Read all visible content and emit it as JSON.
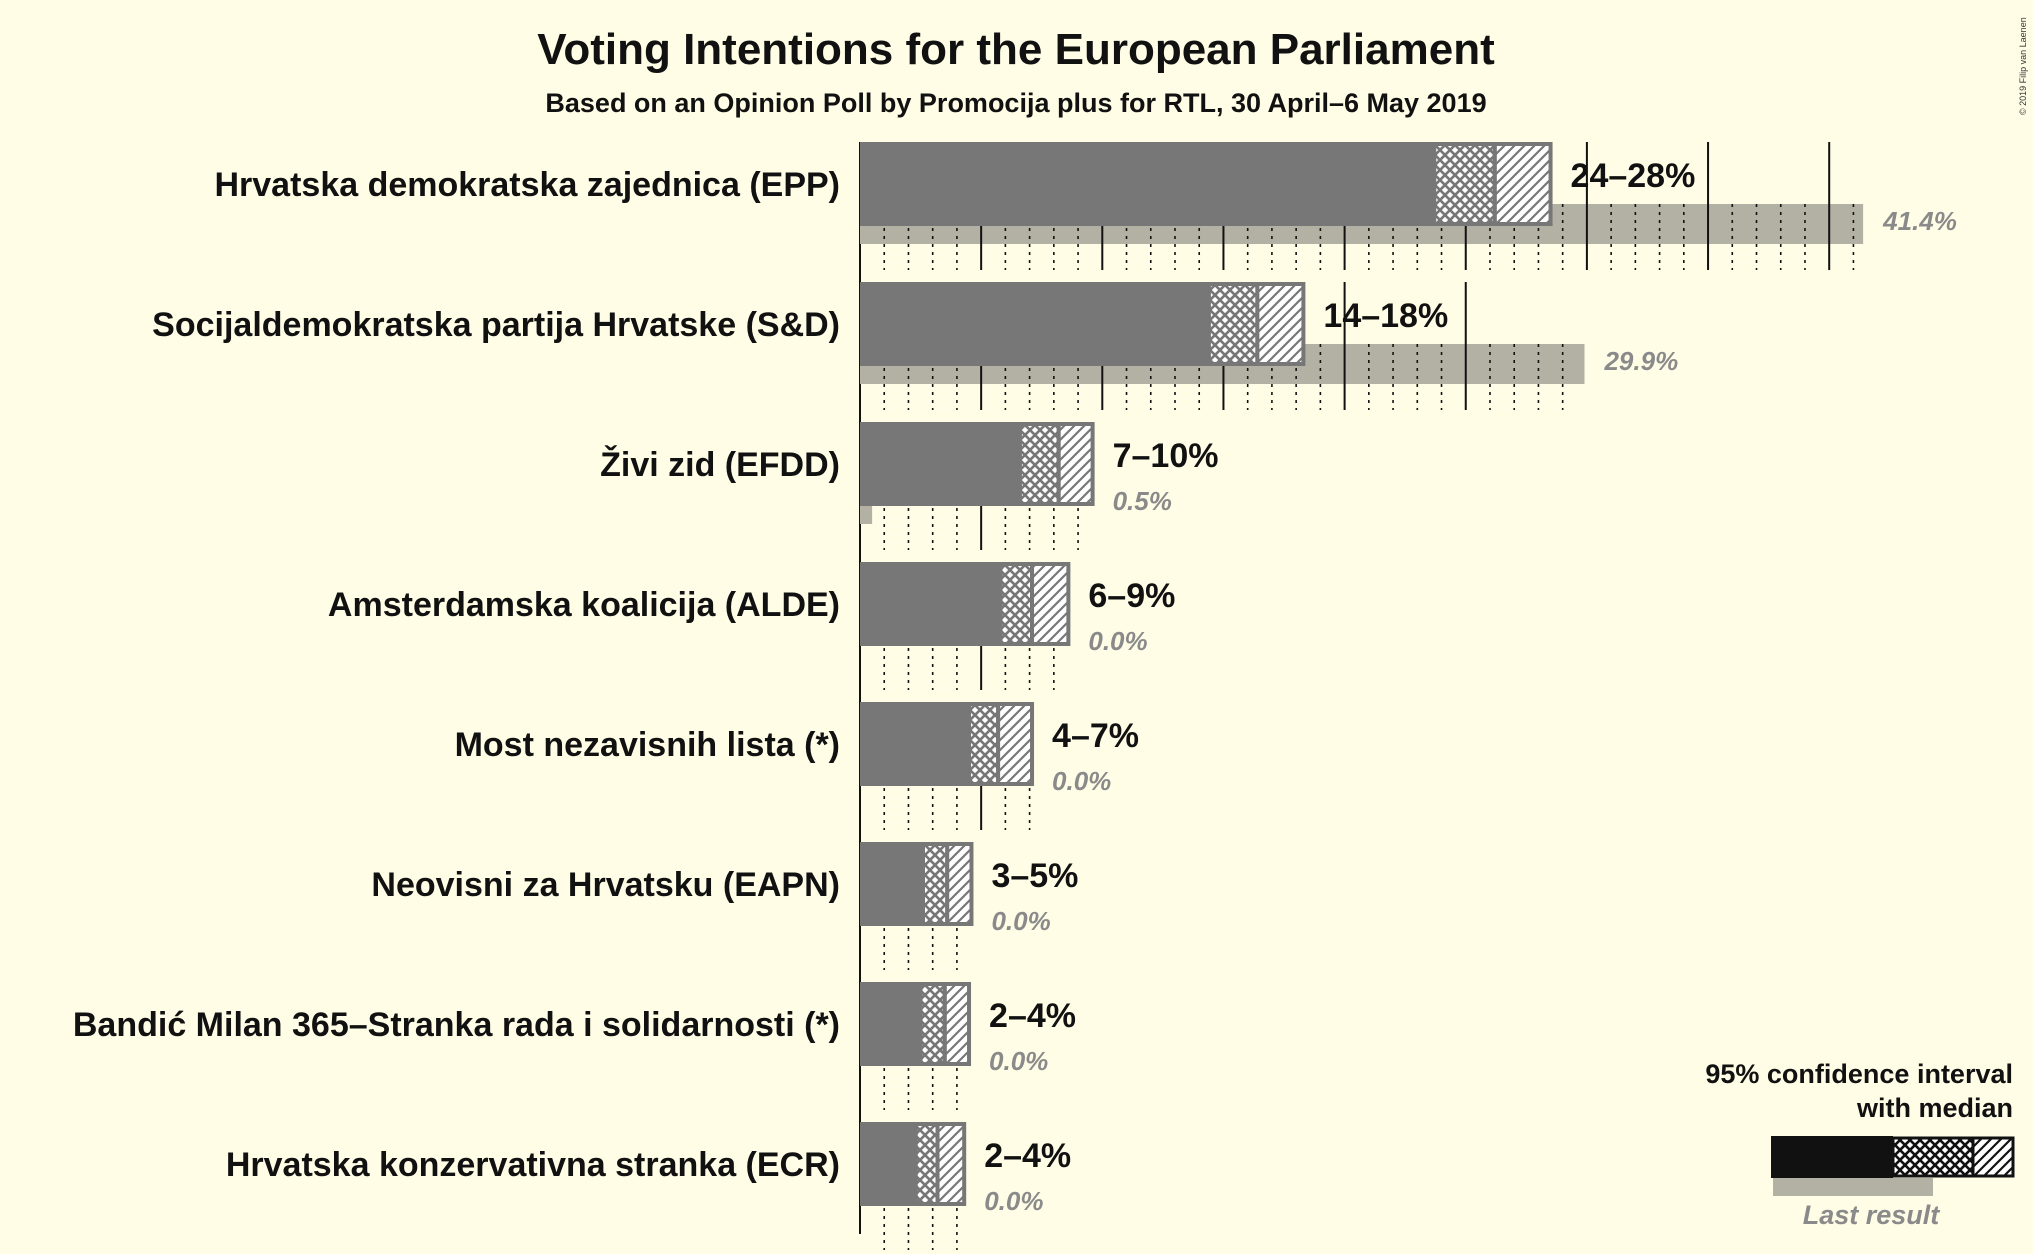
{
  "title": "Voting Intentions for the European Parliament",
  "subtitle": "Based on an Opinion Poll by Promocija plus for RTL, 30 April–6 May 2019",
  "copyright": "© 2019 Filip van Laenen",
  "legend": {
    "line1": "95% confidence interval",
    "line2": "with median",
    "last_result": "Last result"
  },
  "colors": {
    "background": "#fffde6",
    "bar": "#777777",
    "last_result": "#b3b0a4",
    "legend_bar": "#111111"
  },
  "chart_data": {
    "type": "bar",
    "orientation": "horizontal",
    "title": "Voting Intentions for the European Parliament",
    "subtitle": "Based on an Opinion Poll by Promocija plus for RTL, 30 April–6 May 2019",
    "unit": "%",
    "grid": true,
    "legend_position": "bottom-right",
    "xlim": [
      0,
      42
    ],
    "categories": [
      "Hrvatska demokratska zajednica (EPP)",
      "Socijaldemokratska partija Hrvatske (S&D)",
      "Živi zid (EFDD)",
      "Amsterdamska koalicija (ALDE)",
      "Most nezavisnih lista (*)",
      "Neovisni za Hrvatsku (EAPN)",
      "Bandić Milan 365–Stranka rada i solidarnosti (*)",
      "Hrvatska konzervativna stranka (ECR)"
    ],
    "series": [
      {
        "name": "95% confidence interval",
        "low": [
          23.7,
          14.4,
          6.6,
          5.8,
          4.5,
          2.6,
          2.5,
          2.3
        ],
        "median": [
          26.2,
          16.4,
          8.2,
          7.1,
          5.7,
          3.6,
          3.5,
          3.2
        ],
        "high": [
          28.5,
          18.3,
          9.6,
          8.6,
          7.1,
          4.6,
          4.5,
          4.3
        ],
        "labels": [
          "24–28%",
          "14–18%",
          "7–10%",
          "6–9%",
          "4–7%",
          "3–5%",
          "2–4%",
          "2–4%"
        ]
      },
      {
        "name": "Last result",
        "values": [
          41.4,
          29.9,
          0.5,
          0.0,
          0.0,
          0.0,
          0.0,
          0.0
        ],
        "labels": [
          "41.4%",
          "29.9%",
          "0.5%",
          "0.0%",
          "0.0%",
          "0.0%",
          "0.0%",
          "0.0%"
        ]
      }
    ]
  }
}
